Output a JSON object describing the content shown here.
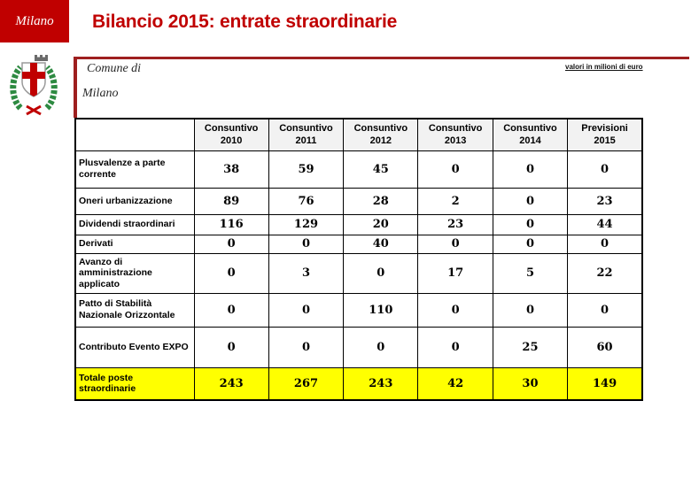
{
  "brand": {
    "label": "Milano"
  },
  "header": {
    "title": "Bilancio 2015: entrate straordinarie"
  },
  "org": {
    "line1": "Comune di",
    "line2": "Milano"
  },
  "note": {
    "text": "valori in milioni di euro"
  },
  "logo": {
    "name": "comune-di-milano-coat-of-arms"
  },
  "colors": {
    "brand_red": "#C00000",
    "rule_red": "#9E1F1F",
    "total_row_bg": "#FFFF00",
    "header_row_bg": "#F2F2F2",
    "table_border": "#000000"
  },
  "table": {
    "columns": [
      "Consuntivo 2010",
      "Consuntivo 2011",
      "Consuntivo 2012",
      "Consuntivo 2013",
      "Consuntivo 2014",
      "Previsioni 2015"
    ],
    "rows": [
      {
        "label": "Plusvalenze a parte corrente",
        "values": [
          38,
          59,
          45,
          0,
          0,
          0
        ],
        "is_total": false
      },
      {
        "label": "Oneri urbanizzazione",
        "values": [
          89,
          76,
          28,
          2,
          0,
          23
        ],
        "is_total": false
      },
      {
        "label": "Dividendi straordinari",
        "values": [
          116,
          129,
          20,
          23,
          0,
          44
        ],
        "is_total": false
      },
      {
        "label": "Derivati",
        "values": [
          0,
          0,
          40,
          0,
          0,
          0
        ],
        "is_total": false
      },
      {
        "label": "Avanzo di amministrazione applicato",
        "values": [
          0,
          3,
          0,
          17,
          5,
          22
        ],
        "is_total": false
      },
      {
        "label": "Patto di Stabilità Nazionale Orizzontale",
        "values": [
          0,
          0,
          110,
          0,
          0,
          0
        ],
        "is_total": false
      },
      {
        "label": "Contributo Evento EXPO",
        "values": [
          0,
          0,
          0,
          0,
          25,
          60
        ],
        "is_total": false
      },
      {
        "label": "Totale poste straordinarie",
        "values": [
          243,
          267,
          243,
          42,
          30,
          149
        ],
        "is_total": true
      }
    ]
  },
  "chart_data": {
    "type": "table",
    "title": "Bilancio 2015: entrate straordinarie",
    "unit_note": "valori in milioni di euro",
    "categories": [
      "Consuntivo 2010",
      "Consuntivo 2011",
      "Consuntivo 2012",
      "Consuntivo 2013",
      "Consuntivo 2014",
      "Previsioni 2015"
    ],
    "series": [
      {
        "name": "Plusvalenze a parte corrente",
        "values": [
          38,
          59,
          45,
          0,
          0,
          0
        ]
      },
      {
        "name": "Oneri urbanizzazione",
        "values": [
          89,
          76,
          28,
          2,
          0,
          23
        ]
      },
      {
        "name": "Dividendi straordinari",
        "values": [
          116,
          129,
          20,
          23,
          0,
          44
        ]
      },
      {
        "name": "Derivati",
        "values": [
          0,
          0,
          40,
          0,
          0,
          0
        ]
      },
      {
        "name": "Avanzo di amministrazione applicato",
        "values": [
          0,
          3,
          0,
          17,
          5,
          22
        ]
      },
      {
        "name": "Patto di Stabilità Nazionale Orizzontale",
        "values": [
          0,
          0,
          110,
          0,
          0,
          0
        ]
      },
      {
        "name": "Contributo Evento EXPO",
        "values": [
          0,
          0,
          0,
          0,
          25,
          60
        ]
      },
      {
        "name": "Totale poste straordinarie",
        "values": [
          243,
          267,
          243,
          42,
          30,
          149
        ]
      }
    ]
  }
}
